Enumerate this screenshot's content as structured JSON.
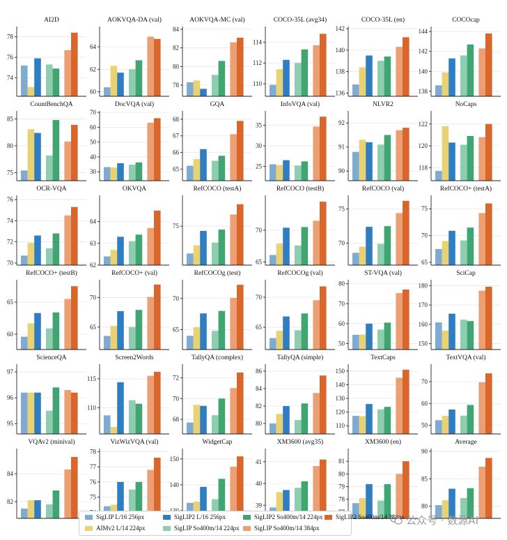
{
  "legend": {
    "location": "bottom-center",
    "items": [
      {
        "name": "SigLIP L/16 256px",
        "color": "#7fabd3"
      },
      {
        "name": "AIMv2 L/14 224px",
        "color": "#e8d273"
      },
      {
        "name": "SigLIP2 L/16 256px",
        "color": "#2f7ec2"
      },
      {
        "name": "SigLIP So400m/14 224px",
        "color": "#8fcdb0"
      },
      {
        "name": "SigLIP2 So400m/14 224px",
        "color": "#3fa672"
      },
      {
        "name": "SigLIP So400m/14 384px",
        "color": "#eb9f73"
      },
      {
        "name": "SigLIP2 So400m/14 384px",
        "color": "#d9662a"
      }
    ]
  },
  "watermark": {
    "text": "公众号 · 数源AI",
    "icon": "wechat-icon"
  },
  "chart_data": [
    {
      "type": "bar",
      "title": "AI2D",
      "ylim": [
        72.2,
        79
      ],
      "yticks": [
        74,
        76,
        78
      ],
      "values": [
        75.2,
        73.1,
        75.9,
        75.3,
        74.9,
        76.7,
        78.4
      ]
    },
    {
      "type": "bar",
      "title": "AOKVQA-DA (val)",
      "ylim": [
        59.6,
        65.8
      ],
      "yticks": [
        60,
        62,
        64
      ],
      "values": [
        60.4,
        62.3,
        61.7,
        62.0,
        62.8,
        64.9,
        64.7
      ]
    },
    {
      "type": "bar",
      "title": "AOKVQA-MC (val)",
      "ylim": [
        76.8,
        84.3
      ],
      "yticks": [
        78,
        80,
        82,
        84
      ],
      "values": [
        78.3,
        78.5,
        77.6,
        79.1,
        80.6,
        82.6,
        83.1
      ]
    },
    {
      "type": "bar",
      "title": "COCO-35L (avg34)",
      "ylim": [
        108.8,
        115.5
      ],
      "yticks": [
        110,
        112,
        114
      ],
      "values": [
        109.9,
        111.4,
        112.3,
        112.0,
        113.3,
        113.7,
        114.8
      ]
    },
    {
      "type": "bar",
      "title": "COCO-35L (en)",
      "ylim": [
        135.7,
        142.2
      ],
      "yticks": [
        136,
        138,
        140,
        142
      ],
      "values": [
        136.8,
        138.4,
        139.5,
        139.0,
        139.4,
        140.3,
        141.2
      ]
    },
    {
      "type": "bar",
      "title": "COCOcap",
      "ylim": [
        137.5,
        144.5
      ],
      "yticks": [
        138,
        140,
        142,
        144
      ],
      "values": [
        138.6,
        139.9,
        141.3,
        141.6,
        142.7,
        142.3,
        143.8
      ]
    },
    {
      "type": "bar",
      "title": "CountBenchQA",
      "ylim": [
        73.5,
        86.5
      ],
      "yticks": [
        75,
        80,
        85
      ],
      "values": [
        75.4,
        83.1,
        82.4,
        78.2,
        84.8,
        80.8,
        83.9
      ]
    },
    {
      "type": "bar",
      "title": "DocVQA (val)",
      "ylim": [
        24,
        71
      ],
      "yticks": [
        30,
        40,
        50,
        60,
        70
      ],
      "values": [
        33.2,
        32.9,
        35.8,
        34.8,
        36.3,
        63.1,
        66.1
      ]
    },
    {
      "type": "bar",
      "title": "GQA",
      "ylim": [
        64.3,
        68.5
      ],
      "yticks": [
        65,
        66,
        67,
        68
      ],
      "values": [
        65.2,
        65.6,
        66.2,
        65.5,
        65.8,
        67.1,
        67.9
      ]
    },
    {
      "type": "bar",
      "title": "InfoVQA (val)",
      "ylim": [
        21.5,
        38.5
      ],
      "yticks": [
        25,
        30,
        35
      ],
      "values": [
        25.5,
        25.3,
        26.5,
        25.2,
        26.2,
        34.7,
        37.1
      ]
    },
    {
      "type": "bar",
      "title": "NLVR2",
      "ylim": [
        89.6,
        92.5
      ],
      "yticks": [
        90,
        91,
        92
      ],
      "values": [
        90.8,
        91.3,
        91.2,
        91.1,
        91.5,
        91.7,
        91.8
      ]
    },
    {
      "type": "bar",
      "title": "NoCaps",
      "ylim": [
        116.8,
        123.2
      ],
      "yticks": [
        118,
        120,
        122
      ],
      "values": [
        117.7,
        121.8,
        120.3,
        120.1,
        120.9,
        120.8,
        122.0
      ]
    },
    {
      "type": "bar",
      "title": "OCR-VQA",
      "ylim": [
        69.8,
        76.4
      ],
      "yticks": [
        70,
        72,
        74,
        76
      ],
      "values": [
        70.7,
        71.9,
        72.6,
        71.4,
        72.8,
        74.5,
        75.3
      ]
    },
    {
      "type": "bar",
      "title": "OKVQA",
      "ylim": [
        62,
        65.2
      ],
      "yticks": [
        62,
        63,
        64
      ],
      "values": [
        62.4,
        62.7,
        63.3,
        63.1,
        63.4,
        63.7,
        64.5
      ]
    },
    {
      "type": "bar",
      "title": "RefCOCO (testA)",
      "ylim": [
        69.3,
        79.5
      ],
      "yticks": [
        75
      ],
      "values": [
        71.0,
        72.2,
        74.3,
        72.6,
        74.5,
        76.7,
        78.2
      ]
    },
    {
      "type": "bar",
      "title": "RefCOCO (testB)",
      "ylim": [
        64.5,
        75.5
      ],
      "yticks": [
        65,
        70
      ],
      "values": [
        66.1,
        67.9,
        70.4,
        67.6,
        70.5,
        71.5,
        74.5
      ]
    },
    {
      "type": "bar",
      "title": "RefCOCO (val)",
      "ylim": [
        66.8,
        77
      ],
      "yticks": [
        70,
        75
      ],
      "values": [
        68.6,
        69.5,
        72.4,
        69.9,
        72.5,
        74.4,
        76.2
      ]
    },
    {
      "type": "bar",
      "title": "RefCOCO+ (testA)",
      "ylim": [
        64.5,
        77.5
      ],
      "yticks": [
        65,
        70,
        75
      ],
      "values": [
        67.5,
        69.0,
        70.9,
        69.1,
        71.5,
        74.2,
        76.0
      ]
    },
    {
      "type": "bar",
      "title": "RefCOCO+ (testB)",
      "ylim": [
        57.6,
        68.5
      ],
      "yticks": [
        60,
        65
      ],
      "values": [
        59.6,
        61.7,
        63.3,
        60.9,
        63.4,
        65.5,
        67.5
      ]
    },
    {
      "type": "bar",
      "title": "RefCOCO+ (val)",
      "ylim": [
        61.2,
        73
      ],
      "yticks": [
        65,
        70
      ],
      "values": [
        63.5,
        65.2,
        67.7,
        65.0,
        67.9,
        70.1,
        72.2
      ]
    },
    {
      "type": "bar",
      "title": "RefCOCOg (test)",
      "ylim": [
        61.8,
        73
      ],
      "yticks": [
        65,
        70
      ],
      "values": [
        64.0,
        65.4,
        67.6,
        64.8,
        68.0,
        70.1,
        72.2
      ]
    },
    {
      "type": "bar",
      "title": "RefCOCOg (val)",
      "ylim": [
        61.3,
        72.9
      ],
      "yticks": [
        65,
        70
      ],
      "values": [
        63.2,
        64.4,
        66.8,
        64.5,
        67.3,
        69.5,
        71.8
      ]
    },
    {
      "type": "bar",
      "title": "ST-VQA (val)",
      "ylim": [
        47,
        82
      ],
      "yticks": [
        50,
        60,
        70,
        80
      ],
      "values": [
        54.4,
        54.5,
        60.0,
        57.0,
        60.5,
        75.3,
        77.1
      ]
    },
    {
      "type": "bar",
      "title": "SciCap",
      "ylim": [
        147,
        183
      ],
      "yticks": [
        150,
        160,
        170,
        180
      ],
      "values": [
        161.0,
        156.8,
        165.5,
        162.4,
        161.7,
        177.4,
        179.4
      ]
    },
    {
      "type": "bar",
      "title": "ScienceQA",
      "ylim": [
        94.6,
        97.3
      ],
      "yticks": [
        95,
        96,
        97
      ],
      "values": [
        96.2,
        96.2,
        96.2,
        95.5,
        96.4,
        96.3,
        96.2
      ]
    },
    {
      "type": "bar",
      "title": "Screen2Words",
      "ylim": [
        105.5,
        117.5
      ],
      "yticks": [
        110,
        115
      ],
      "values": [
        108.7,
        106.7,
        114.4,
        111.3,
        110.7,
        115.5,
        116.2
      ]
    },
    {
      "type": "bar",
      "title": "TallyQA (complex)",
      "ylim": [
        66.6,
        73.3
      ],
      "yticks": [
        68,
        70,
        72
      ],
      "values": [
        67.7,
        69.4,
        69.3,
        68.4,
        70.0,
        71.0,
        72.5
      ]
    },
    {
      "type": "bar",
      "title": "TallyQA (simple)",
      "ylim": [
        78.8,
        86.8
      ],
      "yticks": [
        80,
        82,
        84,
        86
      ],
      "values": [
        80.0,
        81.1,
        82.0,
        80.4,
        82.3,
        83.5,
        85.5
      ]
    },
    {
      "type": "bar",
      "title": "TextCaps",
      "ylim": [
        104,
        155
      ],
      "yticks": [
        110,
        120,
        130,
        140,
        150
      ],
      "values": [
        117.2,
        117.0,
        125.9,
        122.0,
        123.8,
        145.1,
        151.0
      ]
    },
    {
      "type": "bar",
      "title": "TextVQA (val)",
      "ylim": [
        46,
        78
      ],
      "yticks": [
        50,
        60,
        70
      ],
      "values": [
        52.3,
        54.3,
        57.2,
        54.4,
        59.3,
        69.7,
        73.8
      ]
    },
    {
      "type": "bar",
      "title": "VQAv2 (minival)",
      "ylim": [
        80.8,
        85.8
      ],
      "yticks": [
        82,
        84
      ],
      "values": [
        81.5,
        82.1,
        82.1,
        81.8,
        82.8,
        84.3,
        85.2
      ]
    },
    {
      "type": "bar",
      "title": "VizWizVQA (val)",
      "ylim": [
        73.6,
        78.2
      ],
      "yticks": [
        74,
        75,
        76,
        77,
        78
      ],
      "values": [
        74.4,
        74.5,
        76.0,
        75.5,
        76.0,
        76.8,
        77.6
      ]
    },
    {
      "type": "bar",
      "title": "WidgetCap",
      "ylim": [
        127,
        154
      ],
      "yticks": [
        130,
        140,
        150
      ],
      "values": [
        133.0,
        133.5,
        139.2,
        134.4,
        142.3,
        147.0,
        151.0
      ]
    },
    {
      "type": "bar",
      "title": "XM3600 (avg35)",
      "ylim": [
        38.4,
        41.6
      ],
      "yticks": [
        39,
        40,
        41
      ],
      "values": [
        38.9,
        39.6,
        39.7,
        39.8,
        40.1,
        40.8,
        41.1
      ]
    },
    {
      "type": "bar",
      "title": "XM3600 (en)",
      "ylim": [
        76.5,
        82
      ],
      "yticks": [
        77,
        78,
        79,
        80,
        81
      ],
      "values": [
        77.7,
        78.1,
        79.2,
        77.9,
        79.2,
        80.0,
        81.0
      ]
    },
    {
      "type": "bar",
      "title": "Average",
      "ylim": [
        77.8,
        90.5
      ],
      "yticks": [
        80,
        85,
        90
      ],
      "values": [
        80.2,
        81.1,
        83.2,
        81.5,
        83.3,
        87.2,
        88.8
      ]
    }
  ]
}
